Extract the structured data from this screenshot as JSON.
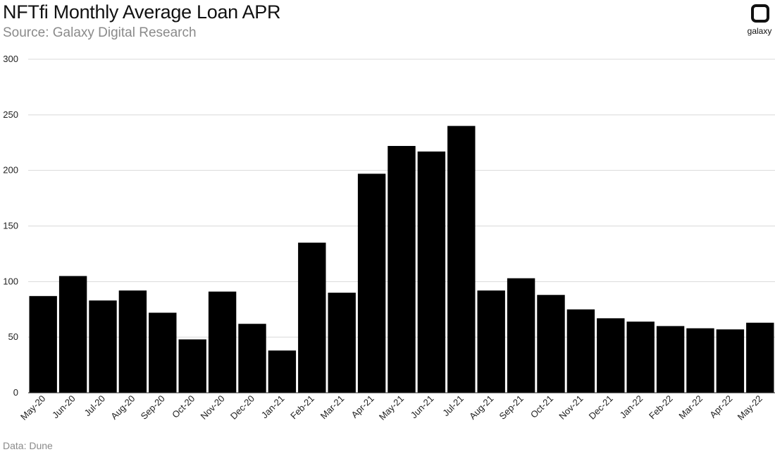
{
  "header": {
    "title": "NFTfi Monthly Average Loan APR",
    "subtitle": "Source: Galaxy Digital Research"
  },
  "footer": {
    "note": "Data: Dune"
  },
  "logo": {
    "text": "galaxy",
    "icon": "galaxy-logo-icon"
  },
  "colors": {
    "bar": "#000000",
    "grid": "#d9d9d9",
    "axis": "#222222"
  },
  "chart_data": {
    "type": "bar",
    "title": "NFTfi Monthly Average Loan APR",
    "xlabel": "",
    "ylabel": "",
    "ylim": [
      0,
      300
    ],
    "yticks": [
      0,
      50,
      100,
      150,
      200,
      250,
      300
    ],
    "grid": true,
    "legend": "none",
    "categories": [
      "May-20",
      "Jun-20",
      "Jul-20",
      "Aug-20",
      "Sep-20",
      "Oct-20",
      "Nov-20",
      "Dec-20",
      "Jan-21",
      "Feb-21",
      "Mar-21",
      "Apr-21",
      "May-21",
      "Jun-21",
      "Jul-21",
      "Aug-21",
      "Sep-21",
      "Oct-21",
      "Nov-21",
      "Dec-21",
      "Jan-22",
      "Feb-22",
      "Mar-22",
      "Apr-22",
      "May-22"
    ],
    "values": [
      87,
      105,
      83,
      92,
      72,
      48,
      91,
      62,
      38,
      135,
      90,
      197,
      222,
      217,
      240,
      92,
      103,
      88,
      75,
      67,
      64,
      60,
      58,
      57,
      63
    ]
  }
}
